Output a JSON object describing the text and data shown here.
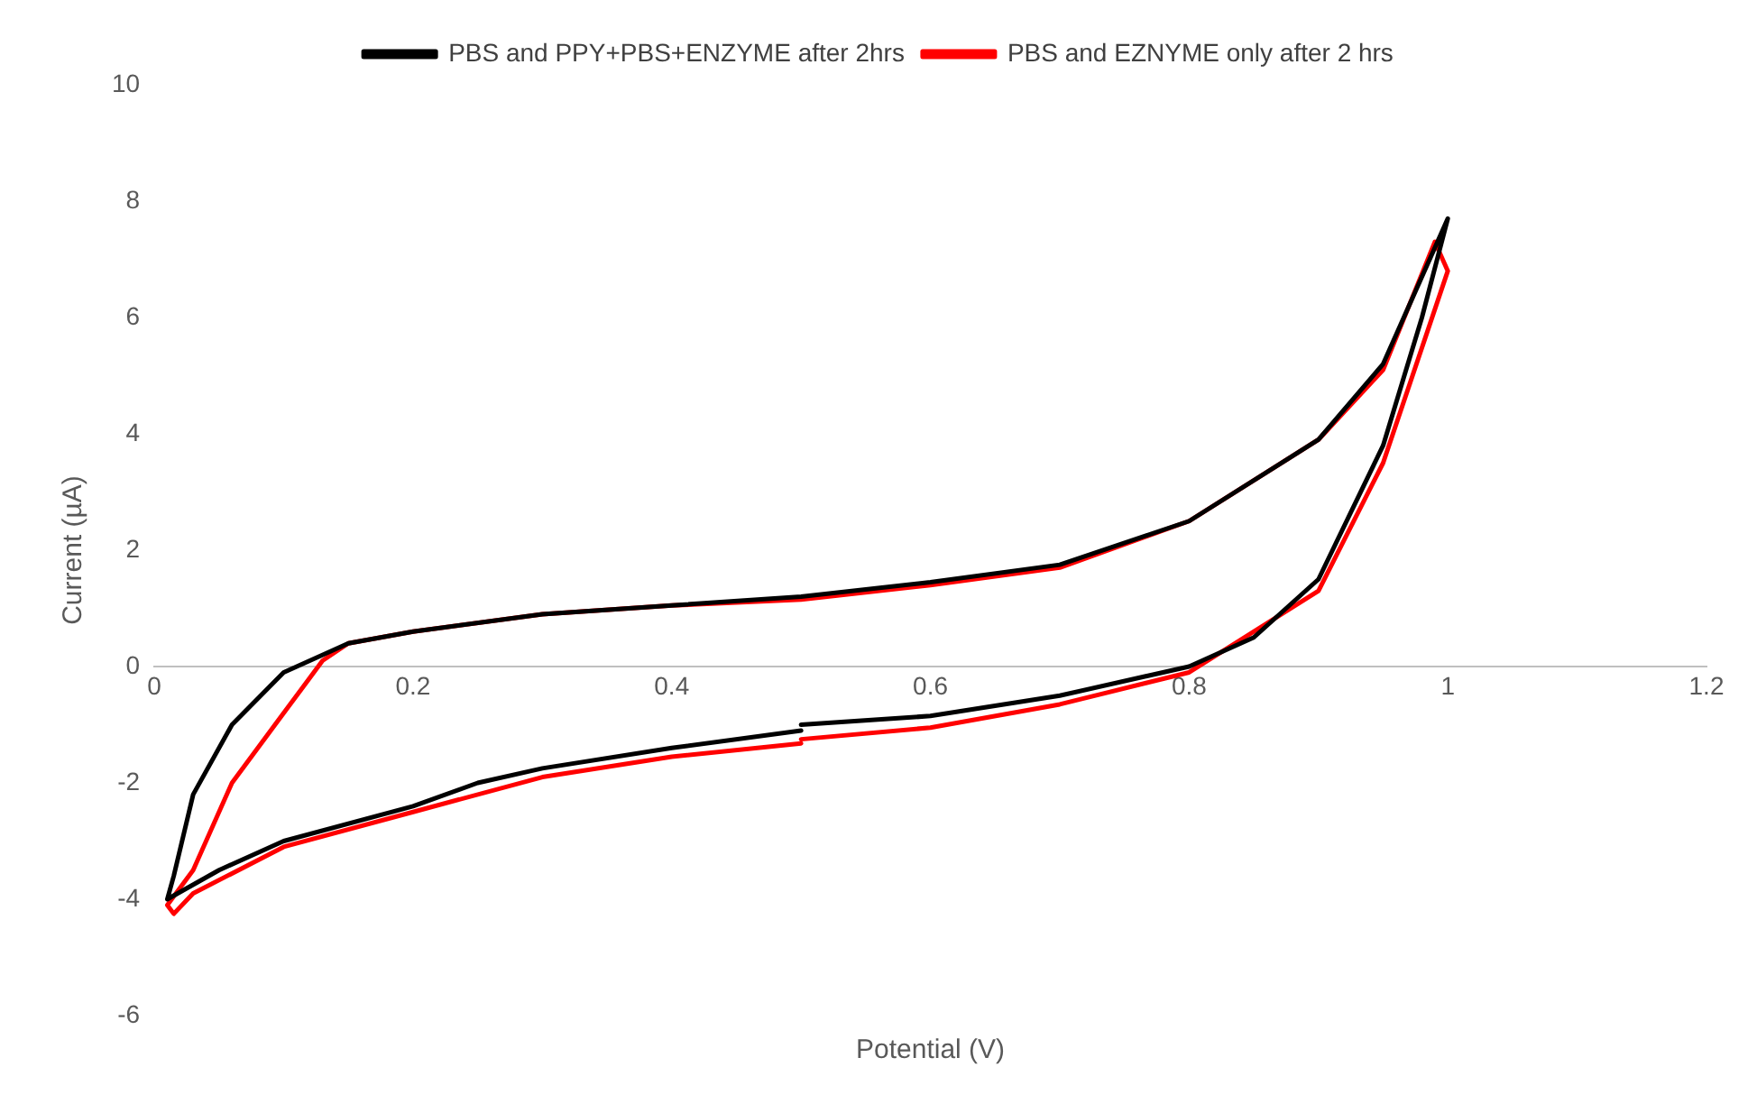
{
  "chart_data": {
    "type": "line",
    "xlabel": "Potential (V)",
    "ylabel": "Current (µA)",
    "xlim": [
      0,
      1.2
    ],
    "xticks": [
      0,
      0.2,
      0.4,
      0.6,
      0.8,
      1,
      1.2
    ],
    "ylim": [
      -6,
      10
    ],
    "yticks": [
      -6,
      -4,
      -2,
      0,
      2,
      4,
      6,
      8,
      10
    ],
    "grid": false,
    "legend": "top",
    "marker": "none",
    "line_style": "solid",
    "series": [
      {
        "name": "PBS and PPY+PBS+ENZYME after 2hrs",
        "color": "#000000",
        "x": [
          0.5,
          0.6,
          0.7,
          0.8,
          0.85,
          0.9,
          0.95,
          0.98,
          1.0,
          0.95,
          0.9,
          0.8,
          0.7,
          0.6,
          0.5,
          0.4,
          0.3,
          0.2,
          0.15,
          0.1,
          0.06,
          0.03,
          0.015,
          0.01,
          0.05,
          0.1,
          0.2,
          0.25,
          0.3,
          0.4,
          0.5
        ],
        "values": [
          -1.0,
          -0.85,
          -0.5,
          0,
          0.5,
          1.5,
          3.8,
          6,
          7.7,
          5.2,
          3.9,
          2.5,
          1.75,
          1.45,
          1.2,
          1.05,
          0.9,
          0.6,
          0.4,
          -0.1,
          -1,
          -2.2,
          -3.6,
          -4,
          -3.5,
          -3,
          -2.4,
          -2,
          -1.75,
          -1.4,
          -1.1
        ]
      },
      {
        "name": "PBS and EZNYME only after 2 hrs",
        "color": "#ff0000",
        "x": [
          0.5,
          0.6,
          0.7,
          0.8,
          0.9,
          0.95,
          1.0,
          0.99,
          0.95,
          0.9,
          0.8,
          0.7,
          0.6,
          0.5,
          0.4,
          0.3,
          0.2,
          0.15,
          0.13,
          0.1,
          0.06,
          0.03,
          0.01,
          0.015,
          0.03,
          0.1,
          0.2,
          0.3,
          0.4,
          0.5
        ],
        "values": [
          -1.25,
          -1.05,
          -0.65,
          -0.1,
          1.3,
          3.5,
          6.8,
          7.3,
          5.1,
          3.9,
          2.5,
          1.7,
          1.4,
          1.15,
          1.05,
          0.9,
          0.6,
          0.4,
          0.1,
          -0.8,
          -2,
          -3.5,
          -4.1,
          -4.25,
          -3.9,
          -3.1,
          -2.5,
          -1.9,
          -1.55,
          -1.32
        ]
      }
    ]
  }
}
